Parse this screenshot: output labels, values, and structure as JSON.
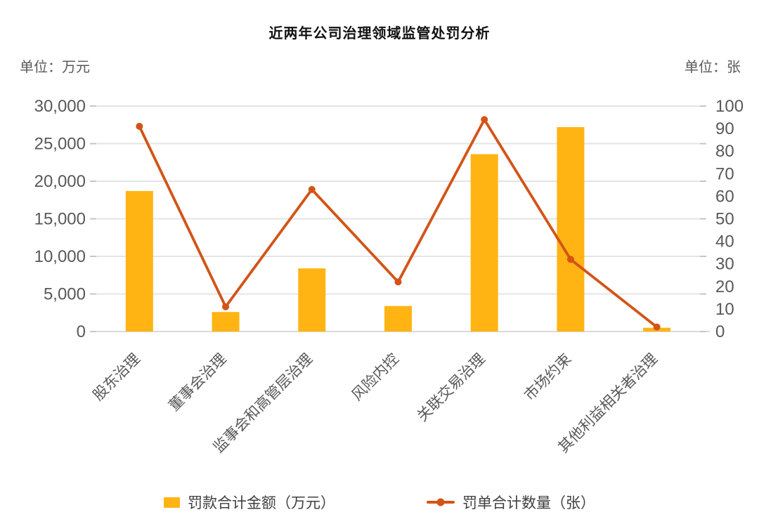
{
  "title": "近两年公司治理领域监管处罚分析",
  "colors": {
    "bar": "#FFB414",
    "line": "#D35417",
    "grid": "#E4E4E4",
    "axis_line": "#D9D9D9",
    "tick": "#C6C6C6",
    "axis_text": "#595959",
    "title_text": "#111111",
    "legend_text": "#3F3F3F"
  },
  "legend": {
    "bar_label": "罚款合计金额（万元）",
    "line_label": "罚单合计数量（张）"
  },
  "chart_data": {
    "type": "combo",
    "title": "近两年公司治理领域监管处罚分析",
    "categories": [
      "股东治理",
      "董事会治理",
      "监事会和高管层治理",
      "风险内控",
      "关联交易治理",
      "市场约束",
      "其他利益相关者治理"
    ],
    "series": [
      {
        "name": "罚款合计金额（万元）",
        "type": "bar",
        "axis": "left",
        "values": [
          18700,
          2600,
          8400,
          3400,
          23600,
          27200,
          500
        ]
      },
      {
        "name": "罚单合计数量（张）",
        "type": "line",
        "axis": "right",
        "values": [
          91,
          11,
          63,
          22,
          94,
          32,
          2
        ]
      }
    ],
    "left_axis": {
      "label": "单位：万元",
      "min": 0,
      "max": 30000,
      "step": 5000,
      "ticks": [
        "30,000",
        "25,000",
        "20,000",
        "15,000",
        "10,000",
        "5,000",
        "0"
      ]
    },
    "right_axis": {
      "label": "单位：张",
      "min": 0,
      "max": 100,
      "step": 10,
      "ticks": [
        "100",
        "90",
        "80",
        "70",
        "60",
        "50",
        "40",
        "30",
        "20",
        "10",
        "0"
      ]
    },
    "grid": true,
    "legend_position": "bottom"
  }
}
